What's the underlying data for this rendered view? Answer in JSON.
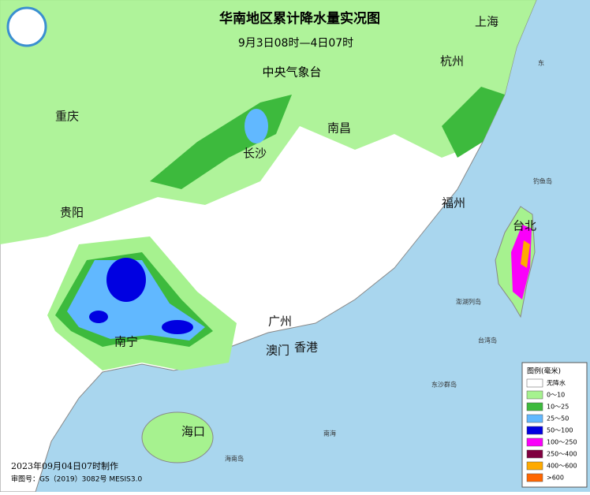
{
  "header": {
    "title": "华南地区累计降水量实况图",
    "subtitle": "9月3日08时—4日07时",
    "agency": "中央气象台"
  },
  "cities": [
    "重庆",
    "长沙",
    "南昌",
    "杭州",
    "上海",
    "福州",
    "台北",
    "贵阳",
    "南宁",
    "广州",
    "澳门",
    "香港",
    "海口"
  ],
  "places": [
    "钓鱼岛",
    "澎湖列岛",
    "台湾岛",
    "东沙群岛",
    "南海",
    "海南岛",
    "东"
  ],
  "legend": {
    "title": "图例(毫米)",
    "items": [
      {
        "label": "无降水",
        "color": "#ffffff"
      },
      {
        "label": "0～10",
        "color": "#a6f28f"
      },
      {
        "label": "10～25",
        "color": "#3dba3d"
      },
      {
        "label": "25～50",
        "color": "#61b8ff"
      },
      {
        "label": "50～100",
        "color": "#0000e1"
      },
      {
        "label": "100～250",
        "color": "#fa00fa"
      },
      {
        "label": "250～400",
        "color": "#800040"
      },
      {
        "label": "400～600",
        "color": "#ffaa00"
      },
      {
        "label": ">600",
        "color": "#ff6600"
      }
    ]
  },
  "footer": {
    "made": "2023年09月04日07时制作",
    "approval": "审图号：GS（2019）3082号 MESIS3.0"
  }
}
